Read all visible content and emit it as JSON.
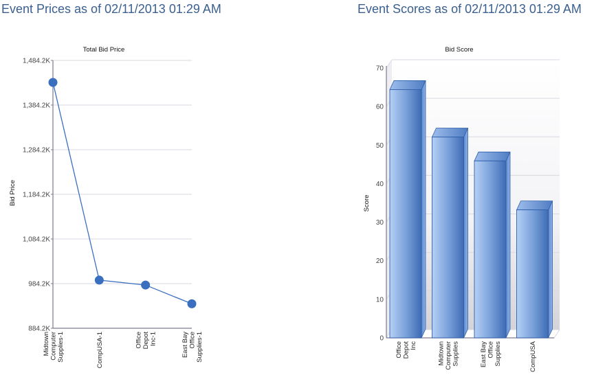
{
  "panels": {
    "left_title": "Event Prices as of 02/11/2013 01:29 AM",
    "right_title": "Event Scores as of 02/11/2013 01:29 AM"
  },
  "colors": {
    "title": "#3a5f8f",
    "series": "#3a6fbf",
    "grid": "#d8d8e0",
    "axis": "#7a7a90"
  },
  "chart_data": [
    {
      "type": "line",
      "title": "Total Bid Price",
      "xlabel": "",
      "ylabel": "Bid Price",
      "categories": [
        "Midtown Computer Supplies-1",
        "CompUSA-1",
        "Office Depot Inc-1",
        "East Bay Office Supplies-1"
      ],
      "category_lines": [
        [
          "Midtown",
          "Computer",
          "Supplies-1"
        ],
        [
          "CompUSA-1"
        ],
        [
          "Office",
          "Depot",
          "Inc-1"
        ],
        [
          "East Bay",
          "Office",
          "Supplies-1"
        ]
      ],
      "values": [
        1435000,
        992000,
        981000,
        939000
      ],
      "ylim": [
        884200,
        1484200
      ],
      "yticks": [
        884200,
        984200,
        1084200,
        1184200,
        1284200,
        1384200,
        1484200
      ],
      "ytick_labels": [
        "884.2K",
        "984.2K",
        "1,084.2K",
        "1,184.2K",
        "1,284.2K",
        "1,384.2K",
        "1,484.2K"
      ],
      "grid": true,
      "legend": "none"
    },
    {
      "type": "bar",
      "title": "Bid Score",
      "xlabel": "",
      "ylabel": "Score",
      "categories": [
        "Office Depot Inc",
        "Midtown Computer Supplies",
        "East Bay Office Supplies",
        "CompUSA"
      ],
      "category_lines": [
        [
          "Office",
          "Depot",
          "Inc"
        ],
        [
          "Midtown",
          "Computer",
          "Supplies"
        ],
        [
          "East Bay",
          "Office",
          "Supplies"
        ],
        [
          "CompUSA"
        ]
      ],
      "values": [
        64.4,
        52.1,
        45.9,
        33.2
      ],
      "ylim": [
        0,
        70
      ],
      "yticks": [
        0,
        10,
        20,
        30,
        40,
        50,
        60,
        70
      ],
      "ytick_labels": [
        "0",
        "10",
        "20",
        "30",
        "40",
        "50",
        "60",
        "70"
      ],
      "grid": true,
      "style": "3d",
      "legend": "none"
    }
  ]
}
